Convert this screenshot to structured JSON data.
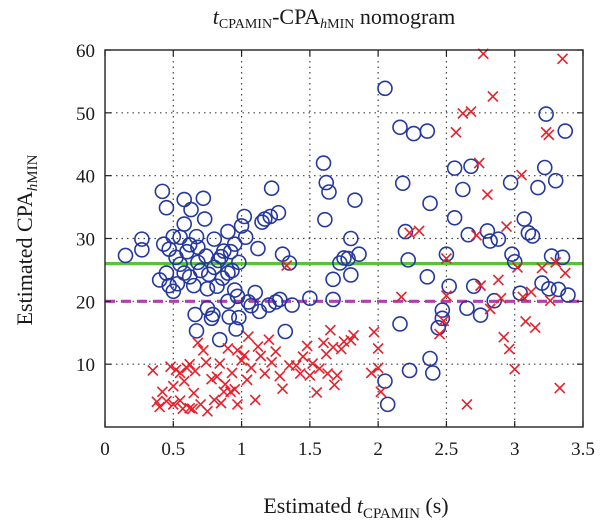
{
  "chart_data": {
    "type": "scatter",
    "title_parts": {
      "t": "t",
      "cpamin_sub": "CPAMIN",
      "mid": "-CPA",
      "h": "h",
      "min_sub": "MIN",
      "tail": " nomogram"
    },
    "xlabel_parts": {
      "prefix": "Estimated ",
      "t": "t",
      "sub": "CPAMIN",
      "suffix": " (s)"
    },
    "ylabel_parts": {
      "prefix": "Estimated CPA",
      "h": "h",
      "sub": "MIN"
    },
    "xlim": [
      0,
      3.5
    ],
    "ylim": [
      0,
      60
    ],
    "xticks": [
      "0",
      "0.5",
      "1",
      "1.5",
      "2",
      "2.5",
      "3",
      "3.5"
    ],
    "yticks": [
      "10",
      "20",
      "30",
      "40",
      "50",
      "60"
    ],
    "xtick_values": [
      0,
      0.5,
      1,
      1.5,
      2,
      2.5,
      3,
      3.5
    ],
    "ytick_values": [
      10,
      20,
      30,
      40,
      50,
      60
    ],
    "grid": true,
    "colors": {
      "circles": "#2438a0",
      "crosses": "#e8202a",
      "solid_line": "#5cc03c",
      "dashed_line": "#b040b0"
    },
    "hlines": [
      {
        "y": 26,
        "style": "solid",
        "color": "#5cc03c"
      },
      {
        "y": 20,
        "style": "dashed",
        "color": "#b040b0"
      }
    ],
    "series": [
      {
        "marker": "circle",
        "color": "#2438a0",
        "points": [
          [
            0.15,
            27.3
          ],
          [
            0.27,
            28.2
          ],
          [
            0.27,
            29.9
          ],
          [
            0.4,
            23.4
          ],
          [
            0.42,
            37.5
          ],
          [
            0.43,
            29.1
          ],
          [
            0.45,
            24.5
          ],
          [
            0.45,
            34.9
          ],
          [
            0.47,
            28.3
          ],
          [
            0.47,
            22.5
          ],
          [
            0.5,
            21.6
          ],
          [
            0.5,
            30.3
          ],
          [
            0.52,
            27
          ],
          [
            0.53,
            22.8
          ],
          [
            0.55,
            30.2
          ],
          [
            0.55,
            25.9
          ],
          [
            0.58,
            32.3
          ],
          [
            0.58,
            36.2
          ],
          [
            0.58,
            24.5
          ],
          [
            0.6,
            27.9
          ],
          [
            0.62,
            29
          ],
          [
            0.62,
            23.9
          ],
          [
            0.63,
            34.6
          ],
          [
            0.65,
            22.5
          ],
          [
            0.66,
            17.9
          ],
          [
            0.67,
            30.3
          ],
          [
            0.67,
            15.3
          ],
          [
            0.68,
            28.6
          ],
          [
            0.68,
            26.2
          ],
          [
            0.7,
            24.9
          ],
          [
            0.72,
            36.4
          ],
          [
            0.73,
            33.1
          ],
          [
            0.74,
            27.2
          ],
          [
            0.75,
            18.9
          ],
          [
            0.75,
            22
          ],
          [
            0.76,
            24.3
          ],
          [
            0.78,
            17.3
          ],
          [
            0.79,
            17.9
          ],
          [
            0.8,
            29.9
          ],
          [
            0.8,
            25.4
          ],
          [
            0.82,
            22.4
          ],
          [
            0.83,
            26.5
          ],
          [
            0.84,
            13.9
          ],
          [
            0.85,
            27.1
          ],
          [
            0.86,
            23.7
          ],
          [
            0.87,
            28
          ],
          [
            0.9,
            31.1
          ],
          [
            0.9,
            24.5
          ],
          [
            0.9,
            20
          ],
          [
            0.91,
            17.5
          ],
          [
            0.92,
            27.9
          ],
          [
            0.93,
            24.9
          ],
          [
            0.95,
            29.1
          ],
          [
            0.95,
            21.8
          ],
          [
            0.96,
            15.6
          ],
          [
            0.97,
            20.8
          ],
          [
            0.98,
            26.2
          ],
          [
            0.98,
            17.4
          ],
          [
            1,
            32
          ],
          [
            1.02,
            33.5
          ],
          [
            1.03,
            30.2
          ],
          [
            1.05,
            19.9
          ],
          [
            1.07,
            19.3
          ],
          [
            1.1,
            21.4
          ],
          [
            1.12,
            28.4
          ],
          [
            1.13,
            18.4
          ],
          [
            1.15,
            32.6
          ],
          [
            1.17,
            33.1
          ],
          [
            1.2,
            19.4
          ],
          [
            1.21,
            33.5
          ],
          [
            1.22,
            38
          ],
          [
            1.25,
            19.9
          ],
          [
            1.27,
            34.1
          ],
          [
            1.28,
            20.3
          ],
          [
            1.3,
            27.5
          ],
          [
            1.32,
            15.2
          ],
          [
            1.35,
            26.1
          ],
          [
            1.37,
            19.4
          ],
          [
            1.5,
            20.5
          ],
          [
            1.6,
            42
          ],
          [
            1.61,
            33
          ],
          [
            1.62,
            38.9
          ],
          [
            1.64,
            37.4
          ],
          [
            1.67,
            23.5
          ],
          [
            1.67,
            20.3
          ],
          [
            1.72,
            26.1
          ],
          [
            1.75,
            26.9
          ],
          [
            1.78,
            26.8
          ],
          [
            1.8,
            24.2
          ],
          [
            1.8,
            30
          ],
          [
            1.83,
            36.1
          ],
          [
            1.86,
            27.5
          ],
          [
            2.05,
            53.9
          ],
          [
            2.05,
            7.3
          ],
          [
            2.07,
            3.6
          ],
          [
            2.16,
            47.7
          ],
          [
            2.16,
            16.4
          ],
          [
            2.18,
            38.8
          ],
          [
            2.2,
            31.1
          ],
          [
            2.22,
            26.6
          ],
          [
            2.23,
            9
          ],
          [
            2.26,
            46.7
          ],
          [
            2.36,
            47.1
          ],
          [
            2.36,
            23.9
          ],
          [
            2.38,
            35.6
          ],
          [
            2.38,
            10.9
          ],
          [
            2.4,
            8.6
          ],
          [
            2.44,
            15.8
          ],
          [
            2.47,
            18.6
          ],
          [
            2.47,
            17.3
          ],
          [
            2.5,
            27.5
          ],
          [
            2.52,
            22.4
          ],
          [
            2.56,
            41.2
          ],
          [
            2.56,
            33.3
          ],
          [
            2.62,
            37.8
          ],
          [
            2.65,
            18.9
          ],
          [
            2.66,
            30.6
          ],
          [
            2.68,
            41.5
          ],
          [
            2.7,
            22.4
          ],
          [
            2.75,
            17.8
          ],
          [
            2.8,
            31.2
          ],
          [
            2.82,
            29.6
          ],
          [
            2.85,
            20.1
          ],
          [
            2.88,
            29.9
          ],
          [
            2.97,
            38.9
          ],
          [
            2.98,
            27.5
          ],
          [
            3,
            26.3
          ],
          [
            3.04,
            21.3
          ],
          [
            3.07,
            33.1
          ],
          [
            3.1,
            30.9
          ],
          [
            3.13,
            30.4
          ],
          [
            3.17,
            38.1
          ],
          [
            3.2,
            22.9
          ],
          [
            3.22,
            41.3
          ],
          [
            3.23,
            49.8
          ],
          [
            3.25,
            22
          ],
          [
            3.27,
            27.2
          ],
          [
            3.3,
            39.2
          ],
          [
            3.32,
            21.9
          ],
          [
            3.35,
            27
          ],
          [
            3.37,
            47.1
          ],
          [
            3.39,
            21
          ]
        ]
      },
      {
        "marker": "cross",
        "color": "#e8202a",
        "points": [
          [
            0.35,
            9
          ],
          [
            0.38,
            4
          ],
          [
            0.4,
            3.2
          ],
          [
            0.42,
            5.6
          ],
          [
            0.45,
            4.1
          ],
          [
            0.48,
            9.6
          ],
          [
            0.5,
            3.6
          ],
          [
            0.5,
            6.5
          ],
          [
            0.52,
            9.1
          ],
          [
            0.55,
            4.2
          ],
          [
            0.55,
            8.6
          ],
          [
            0.57,
            2.9
          ],
          [
            0.58,
            7.3
          ],
          [
            0.6,
            9.4
          ],
          [
            0.62,
            10
          ],
          [
            0.62,
            3
          ],
          [
            0.64,
            2.9
          ],
          [
            0.65,
            5.4
          ],
          [
            0.66,
            8.9
          ],
          [
            0.68,
            13.4
          ],
          [
            0.7,
            3.6
          ],
          [
            0.72,
            12.2
          ],
          [
            0.74,
            10.3
          ],
          [
            0.75,
            2.5
          ],
          [
            0.78,
            7.6
          ],
          [
            0.8,
            4.3
          ],
          [
            0.82,
            8
          ],
          [
            0.84,
            10.1
          ],
          [
            0.85,
            3.8
          ],
          [
            0.87,
            5.6
          ],
          [
            0.88,
            6.8
          ],
          [
            0.9,
            12.5
          ],
          [
            0.92,
            5.6
          ],
          [
            0.93,
            8.6
          ],
          [
            0.95,
            6
          ],
          [
            0.97,
            12.2
          ],
          [
            0.97,
            3.6
          ],
          [
            1,
            10.6
          ],
          [
            1.02,
            11.4
          ],
          [
            1.04,
            7.5
          ],
          [
            1.05,
            14.4
          ],
          [
            1.07,
            9.4
          ],
          [
            1.1,
            4.3
          ],
          [
            1.12,
            12.8
          ],
          [
            1.14,
            11.3
          ],
          [
            1.17,
            8.5
          ],
          [
            1.2,
            13.9
          ],
          [
            1.22,
            10.3
          ],
          [
            1.25,
            12
          ],
          [
            1.28,
            8.1
          ],
          [
            1.3,
            6.1
          ],
          [
            1.33,
            25.7
          ],
          [
            1.35,
            9.8
          ],
          [
            1.4,
            9.8
          ],
          [
            1.43,
            8.5
          ],
          [
            1.45,
            11.2
          ],
          [
            1.48,
            12.9
          ],
          [
            1.5,
            8.2
          ],
          [
            1.52,
            10.1
          ],
          [
            1.55,
            5.5
          ],
          [
            1.57,
            9.3
          ],
          [
            1.6,
            13.4
          ],
          [
            1.62,
            11.6
          ],
          [
            1.63,
            8.5
          ],
          [
            1.65,
            15.4
          ],
          [
            1.67,
            12.7
          ],
          [
            1.68,
            6.7
          ],
          [
            1.7,
            8.2
          ],
          [
            1.73,
            12.4
          ],
          [
            1.75,
            13.6
          ],
          [
            1.8,
            13.8
          ],
          [
            1.82,
            14.6
          ],
          [
            1.95,
            8.6
          ],
          [
            1.97,
            15.1
          ],
          [
            2,
            12.5
          ],
          [
            2,
            9.4
          ],
          [
            2.02,
            5.6
          ],
          [
            2.17,
            20.7
          ],
          [
            2.23,
            30.9
          ],
          [
            2.3,
            31.2
          ],
          [
            2.45,
            14.8
          ],
          [
            2.48,
            16.9
          ],
          [
            2.5,
            20.9
          ],
          [
            2.5,
            26.8
          ],
          [
            2.57,
            46.9
          ],
          [
            2.62,
            49.9
          ],
          [
            2.65,
            3.6
          ],
          [
            2.68,
            50.2
          ],
          [
            2.72,
            30.5
          ],
          [
            2.74,
            42
          ],
          [
            2.75,
            22.5
          ],
          [
            2.77,
            59.4
          ],
          [
            2.8,
            37
          ],
          [
            2.82,
            18.8
          ],
          [
            2.84,
            52.6
          ],
          [
            2.88,
            23.4
          ],
          [
            2.9,
            20.5
          ],
          [
            2.92,
            14.3
          ],
          [
            2.94,
            31.9
          ],
          [
            2.96,
            12.4
          ],
          [
            3,
            9.2
          ],
          [
            3.02,
            25.4
          ],
          [
            3.05,
            40.1
          ],
          [
            3.06,
            20.7
          ],
          [
            3.08,
            16.8
          ],
          [
            3.12,
            21.5
          ],
          [
            3.15,
            15.8
          ],
          [
            3.2,
            25.3
          ],
          [
            3.23,
            46.9
          ],
          [
            3.25,
            46.5
          ],
          [
            3.26,
            20.1
          ],
          [
            3.3,
            26.2
          ],
          [
            3.33,
            6.2
          ],
          [
            3.35,
            58.6
          ],
          [
            3.37,
            24.5
          ]
        ]
      }
    ]
  }
}
